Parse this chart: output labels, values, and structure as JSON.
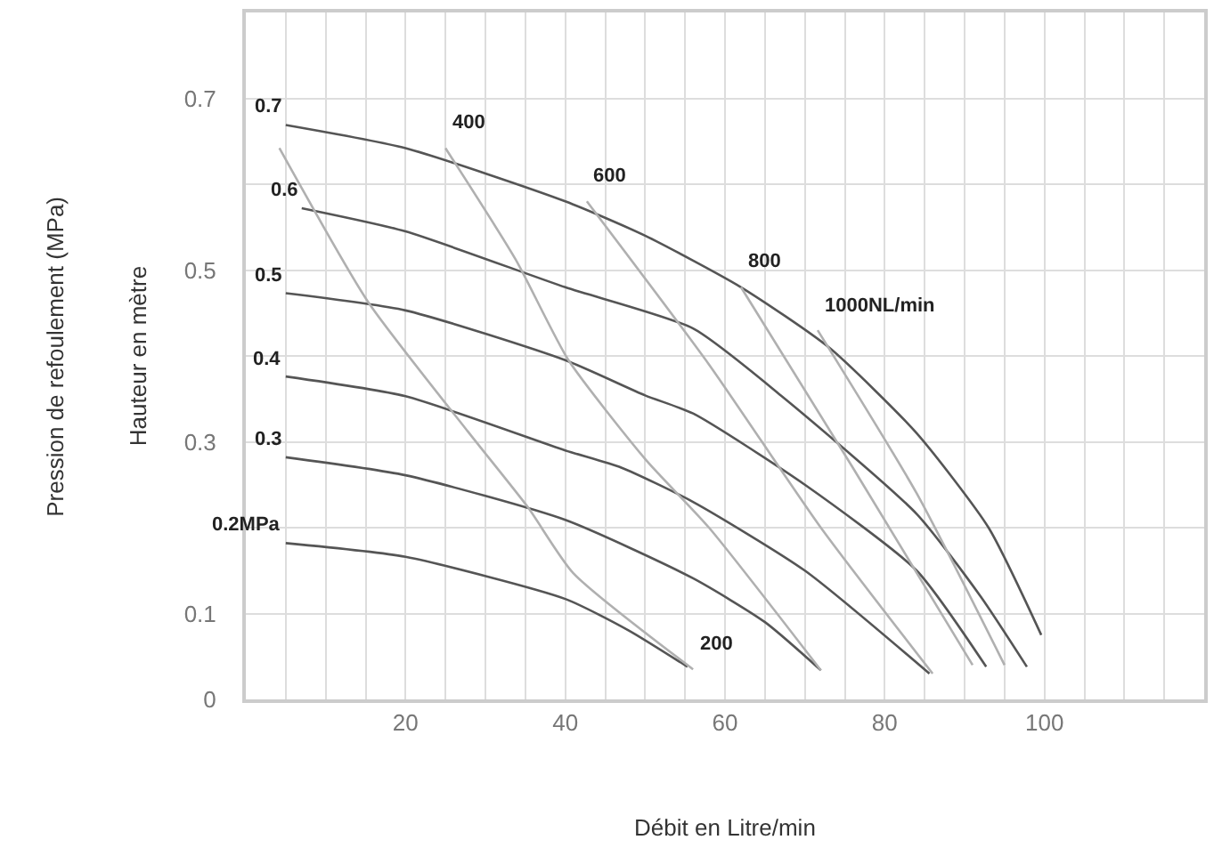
{
  "chart_data": {
    "type": "line",
    "xlabel": "Débit en Litre/min",
    "ylabel": "Hauteur en mètre",
    "xlim": [
      0,
      120
    ],
    "ylim": [
      0,
      0.8
    ],
    "xticks": [
      {
        "value": 0,
        "label": null
      },
      {
        "value": 5,
        "label": null
      },
      {
        "value": 10,
        "label": null
      },
      {
        "value": 15,
        "label": null
      },
      20,
      {
        "value": 25,
        "label": null
      },
      {
        "value": 30,
        "label": null
      },
      {
        "value": 35,
        "label": null
      },
      40,
      {
        "value": 45,
        "label": null
      },
      {
        "value": 50,
        "label": null
      },
      {
        "value": 55,
        "label": null
      },
      60,
      {
        "value": 65,
        "label": null
      },
      {
        "value": 70,
        "label": null
      },
      {
        "value": 75,
        "label": null
      },
      80,
      {
        "value": 85,
        "label": null
      },
      {
        "value": 90,
        "label": null
      },
      {
        "value": 95,
        "label": null
      },
      100,
      {
        "value": 105,
        "label": null
      },
      {
        "value": 110,
        "label": null
      },
      {
        "value": 115,
        "label": null
      }
    ],
    "yticks": [
      0,
      0.1,
      {
        "value": 0.2,
        "label": null
      },
      0.3,
      {
        "value": 0.4,
        "label": null
      },
      0.5,
      {
        "value": 0.6,
        "label": null
      },
      0.7
    ],
    "grid": true,
    "marker": "none",
    "line_style": "solid",
    "series": [
      {
        "color": "#555555",
        "x": [
          5,
          20,
          40,
          50,
          62,
          73,
          84,
          93,
          99.6
        ],
        "values": [
          0.669,
          0.642,
          0.58,
          0.54,
          0.48,
          0.41,
          0.31,
          0.2,
          0.075
        ]
      },
      {
        "color": "#555555",
        "x": [
          7,
          20,
          40,
          56,
          67,
          84,
          92,
          97.8
        ],
        "values": [
          0.572,
          0.545,
          0.48,
          0.432,
          0.354,
          0.216,
          0.12,
          0.038
        ]
      },
      {
        "color": "#555555",
        "x": [
          5,
          20,
          40,
          50,
          56,
          70,
          84,
          92.7
        ],
        "values": [
          0.473,
          0.453,
          0.395,
          0.354,
          0.333,
          0.25,
          0.15,
          0.038
        ]
      },
      {
        "color": "#555555",
        "x": [
          5,
          20,
          40,
          47,
          56,
          70,
          85.6
        ],
        "values": [
          0.376,
          0.353,
          0.29,
          0.27,
          0.23,
          0.15,
          0.03
        ]
      },
      {
        "color": "#555555",
        "x": [
          5,
          20,
          40,
          56,
          65,
          72
        ],
        "values": [
          0.282,
          0.261,
          0.209,
          0.141,
          0.09,
          0.034
        ]
      },
      {
        "color": "#555555",
        "x": [
          5,
          20,
          40,
          48,
          55.3
        ],
        "values": [
          0.182,
          0.166,
          0.117,
          0.08,
          0.038
        ]
      },
      {
        "color": "#b0b0b0",
        "x": [
          4.2,
          15.3,
          27.8,
          35.3,
          41,
          56
        ],
        "values": [
          0.642,
          0.463,
          0.312,
          0.224,
          0.147,
          0.035
        ]
      },
      {
        "color": "#b0b0b0",
        "x": [
          25,
          33.8,
          40.4,
          50,
          58,
          72
        ],
        "values": [
          0.642,
          0.512,
          0.395,
          0.28,
          0.2,
          0.034
        ]
      },
      {
        "color": "#b0b0b0",
        "x": [
          42.7,
          58,
          72,
          86
        ],
        "values": [
          0.58,
          0.39,
          0.2,
          0.03
        ]
      },
      {
        "color": "#b0b0b0",
        "x": [
          62,
          76,
          91
        ],
        "values": [
          0.48,
          0.27,
          0.04
        ]
      },
      {
        "color": "#b0b0b0",
        "x": [
          71.6,
          84,
          95
        ],
        "values": [
          0.43,
          0.24,
          0.04
        ]
      }
    ],
    "annotations": [
      "Pression de refoulement (MPa)",
      {
        "text": "0.7",
        "x": 5,
        "y": 0.669
      },
      {
        "text": "0.6",
        "x": 7,
        "y": 0.572
      },
      {
        "text": "0.5",
        "x": 5,
        "y": 0.473
      },
      {
        "text": "0.4",
        "x": 5,
        "y": 0.376
      },
      {
        "text": "0.3",
        "x": 5,
        "y": 0.282
      },
      {
        "text": "0.2MPa",
        "x": 5,
        "y": 0.182
      },
      {
        "text": "400",
        "x": 25,
        "y": 0.642
      },
      {
        "text": "600",
        "x": 42.7,
        "y": 0.58
      },
      {
        "text": "800",
        "x": 62,
        "y": 0.48
      },
      {
        "text": "1000NL/min",
        "x": 71.6,
        "y": 0.43
      },
      {
        "text": "200",
        "x": 56,
        "y": 0.035
      }
    ]
  }
}
